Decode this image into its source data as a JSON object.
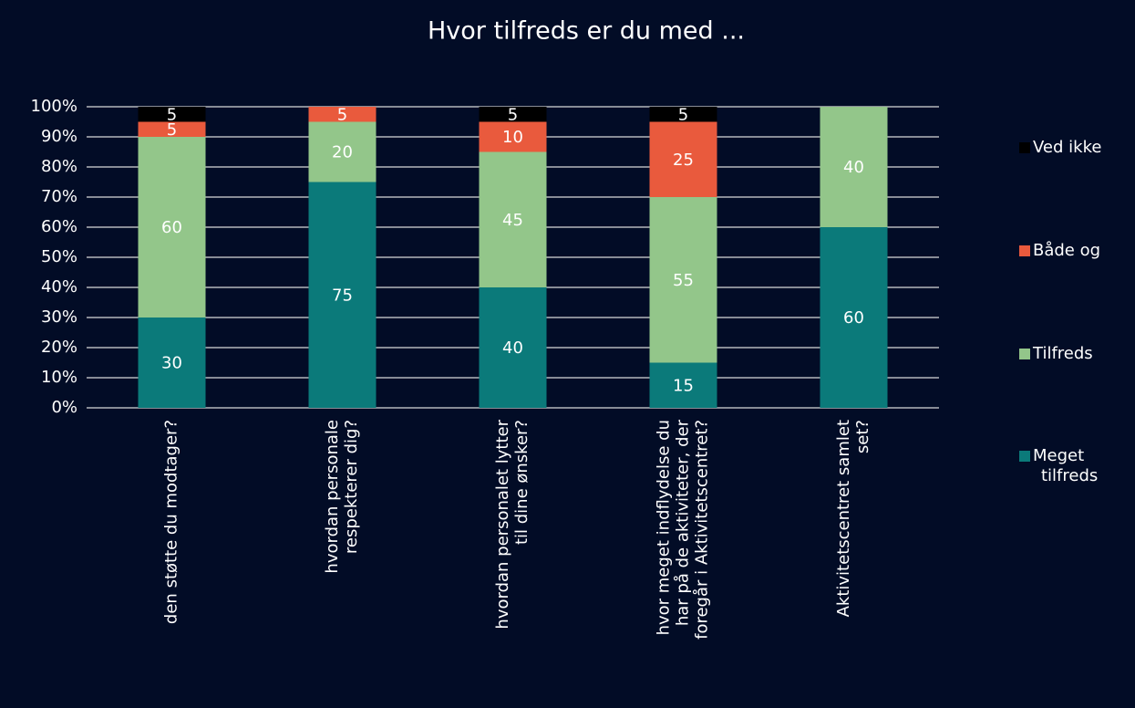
{
  "chart_data": {
    "type": "stacked_bar",
    "title": "Hvor tilfreds er du med ...",
    "categories": [
      [
        "den støtte du modtager?"
      ],
      [
        "hvordan personale",
        "respekterer dig?"
      ],
      [
        "hvordan personalet lytter",
        "til dine ønsker?"
      ],
      [
        "hvor meget indflydelse du",
        "har på de aktiviteter, der",
        "foregår i Aktivitetscentret?"
      ],
      [
        "Aktivitetscentret samlet",
        "set?"
      ]
    ],
    "series": [
      {
        "name": "Meget tilfreds",
        "color": "#0b7a7a",
        "values": [
          30,
          75,
          40,
          15,
          60
        ]
      },
      {
        "name": "Tilfreds",
        "color": "#93c68a",
        "values": [
          60,
          20,
          45,
          55,
          40
        ]
      },
      {
        "name": "Både og",
        "color": "#e95a3d",
        "values": [
          5,
          5,
          10,
          25,
          null
        ]
      },
      {
        "name": "Ved ikke",
        "color": "#000000",
        "values": [
          5,
          null,
          5,
          5,
          null
        ]
      }
    ],
    "ylim": [
      0,
      100
    ],
    "yticks": [
      {
        "value": 0,
        "label": "0%"
      },
      {
        "value": 10,
        "label": "10%"
      },
      {
        "value": 20,
        "label": "20%"
      },
      {
        "value": 30,
        "label": "30%"
      },
      {
        "value": 40,
        "label": "40%"
      },
      {
        "value": 50,
        "label": "50%"
      },
      {
        "value": 60,
        "label": "60%"
      },
      {
        "value": 70,
        "label": "70%"
      },
      {
        "value": 80,
        "label": "80%"
      },
      {
        "value": 90,
        "label": "90%"
      },
      {
        "value": 100,
        "label": "100%"
      }
    ],
    "grid": true,
    "legend": "right"
  }
}
